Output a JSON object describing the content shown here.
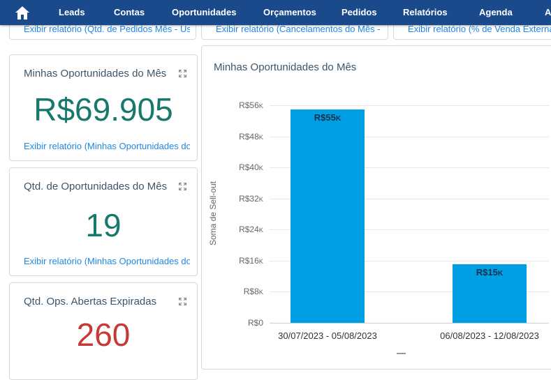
{
  "nav": {
    "items": [
      "Leads",
      "Contas",
      "Oportunidades",
      "Orçamentos",
      "Pedidos",
      "Relatórios",
      "Agenda",
      "A"
    ]
  },
  "top_links": [
    "Exibir relatório (Qtd. de Pedidos Mês - Usuá...",
    "Exibir relatório (Cancelamentos do Mês - Us...",
    "Exibir relatório (% de Venda Externa - Us..."
  ],
  "kpi_cards": [
    {
      "title": "Minhas Oportunidades do Mês",
      "value": "R$69.905",
      "value_color": "#17796b",
      "link": "Exibir relatório (Minhas Oportunidades do M..."
    },
    {
      "title": "Qtd. de Oportunidades do Mês",
      "value": "19",
      "value_color": "#17796b",
      "link": "Exibir relatório (Minhas Oportunidades do M..."
    },
    {
      "title": "Qtd. Ops. Abertas Expiradas",
      "value": "260",
      "value_color": "#c63934"
    }
  ],
  "colors": {
    "navbar": "#1b4a8c",
    "link": "#1e88e5",
    "bar": "#009fe3"
  },
  "chart_data": {
    "type": "bar",
    "title": "Minhas Oportunidades do Mês",
    "categories": [
      "30/07/2023 - 05/08/2023",
      "06/08/2023 - 12/08/2023"
    ],
    "values": [
      55000,
      15000
    ],
    "data_labels": [
      "R$55K",
      "R$15K"
    ],
    "xlabel": "",
    "ylabel": "Soma de Sell-out",
    "ylim": [
      0,
      56000
    ],
    "yticks": {
      "values": [
        0,
        8000,
        16000,
        24000,
        32000,
        40000,
        48000,
        56000
      ],
      "labels": [
        "R$0",
        "R$8K",
        "R$16K",
        "R$24K",
        "R$32K",
        "R$40K",
        "R$48K",
        "R$56K"
      ]
    },
    "bar_color": "#009fe3",
    "grid": true,
    "legend": false
  }
}
